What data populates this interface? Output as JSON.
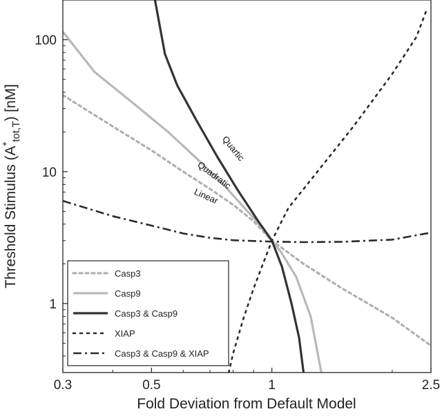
{
  "chart_data": {
    "type": "line",
    "title": "",
    "xlabel": "Fold Deviation from Default Model",
    "ylabel_main": "Threshold Stimulus (A",
    "ylabel_star": "*",
    "ylabel_sub": "tot,T",
    "ylabel_end": ") [nM]",
    "xscale": "log",
    "yscale": "log",
    "xlim": [
      0.3,
      2.5
    ],
    "ylim": [
      0.3,
      200
    ],
    "xticks": [
      0.3,
      0.5,
      1,
      2.5
    ],
    "xtick_labels": [
      "0.3",
      "0.5",
      "1",
      "2.5"
    ],
    "yticks": [
      1,
      10,
      100
    ],
    "ytick_labels": [
      "1",
      "10",
      "100"
    ],
    "grid": false,
    "legend_position": "bottom-left",
    "series": [
      {
        "name": "Casp3",
        "color": "#b0b0b0",
        "dash": "dotted",
        "x": [
          0.3,
          0.4,
          0.5,
          0.6,
          0.7,
          0.8,
          0.9,
          1.0,
          1.2,
          1.5,
          2.0,
          2.5
        ],
        "y": [
          38,
          22,
          14.5,
          10,
          7.4,
          5.6,
          4.2,
          3.0,
          2.0,
          1.3,
          0.78,
          0.48
        ]
      },
      {
        "name": "Casp9",
        "color": "#b8b8b8",
        "dash": "solid",
        "x": [
          0.3,
          0.36,
          0.45,
          0.55,
          0.65,
          0.75,
          0.85,
          0.95,
          1.0,
          1.05,
          1.15,
          1.25,
          1.33
        ],
        "y": [
          115,
          57,
          33,
          20,
          12.5,
          8.2,
          5.4,
          3.7,
          3.0,
          2.5,
          1.6,
          0.8,
          0.3
        ]
      },
      {
        "name": "Casp3 & Casp9",
        "color": "#333333",
        "dash": "solid",
        "x": [
          0.51,
          0.54,
          0.58,
          0.65,
          0.73,
          0.82,
          0.92,
          1.0,
          1.06,
          1.12,
          1.17,
          1.2
        ],
        "y": [
          200,
          78,
          45,
          24,
          13,
          7.3,
          4.3,
          3.0,
          1.9,
          1.0,
          0.55,
          0.3
        ]
      },
      {
        "name": "XIAP",
        "color": "#2a2a2a",
        "dash": "dot",
        "x": [
          0.78,
          0.8,
          0.85,
          0.9,
          0.95,
          1.0,
          1.1,
          1.3,
          1.6,
          2.0,
          2.3,
          2.45
        ],
        "y": [
          0.3,
          0.42,
          0.78,
          1.3,
          2.0,
          3.0,
          5.3,
          10,
          22,
          55,
          105,
          175
        ]
      },
      {
        "name": "Casp3 & Casp9 & XIAP",
        "color": "#2a2a2a",
        "dash": "dashdot",
        "x": [
          0.3,
          0.4,
          0.5,
          0.6,
          0.7,
          0.8,
          0.9,
          1.0,
          1.2,
          1.5,
          2.0,
          2.5
        ],
        "y": [
          6.0,
          4.6,
          3.9,
          3.4,
          3.15,
          3.02,
          2.98,
          2.95,
          2.92,
          2.94,
          3.05,
          3.45
        ]
      }
    ],
    "annotations": [
      {
        "text": "Quartic",
        "x": 0.79,
        "y": 14.5,
        "angle": 51
      },
      {
        "text": "Quadratic",
        "x": 0.71,
        "y": 9.0,
        "angle": 37
      },
      {
        "text": "Linear",
        "x": 0.68,
        "y": 6.2,
        "angle": 24
      }
    ]
  }
}
